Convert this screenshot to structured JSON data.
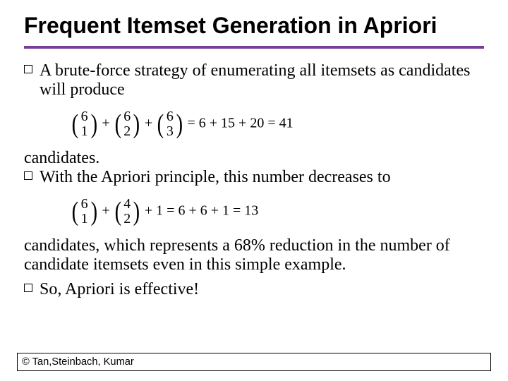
{
  "title": {
    "text": "Frequent Itemset Generation in Apriori",
    "fontsize_pt": 24
  },
  "rule_color": "#7a3b9b",
  "body_fontsize_pt": 18,
  "bullets": {
    "b1": "A brute-force strategy of enumerating all itemsets as candidates will produce",
    "cont1": "candidates.",
    "b2": "With the Apriori principle, this number decreases to",
    "cont2": "candidates, which represents a 68% reduction in the number of candidate itemsets even in this simple example.",
    "b3": "So, Apriori is effective!"
  },
  "formula1": {
    "terms": [
      {
        "n": "6",
        "k": "1"
      },
      {
        "n": "6",
        "k": "2"
      },
      {
        "n": "6",
        "k": "3"
      }
    ],
    "joiner": " + ",
    "eq": " = 6 + 15 + 20 = 41",
    "fontsize_pt": 15
  },
  "formula2": {
    "terms": [
      {
        "n": "6",
        "k": "1"
      },
      {
        "n": "4",
        "k": "2"
      }
    ],
    "joiner": " + ",
    "tail": " + 1 = 6 + 6 + 1 = 13",
    "fontsize_pt": 15
  },
  "footer": {
    "text": "© Tan,Steinbach, Kumar",
    "fontsize_pt": 11
  }
}
